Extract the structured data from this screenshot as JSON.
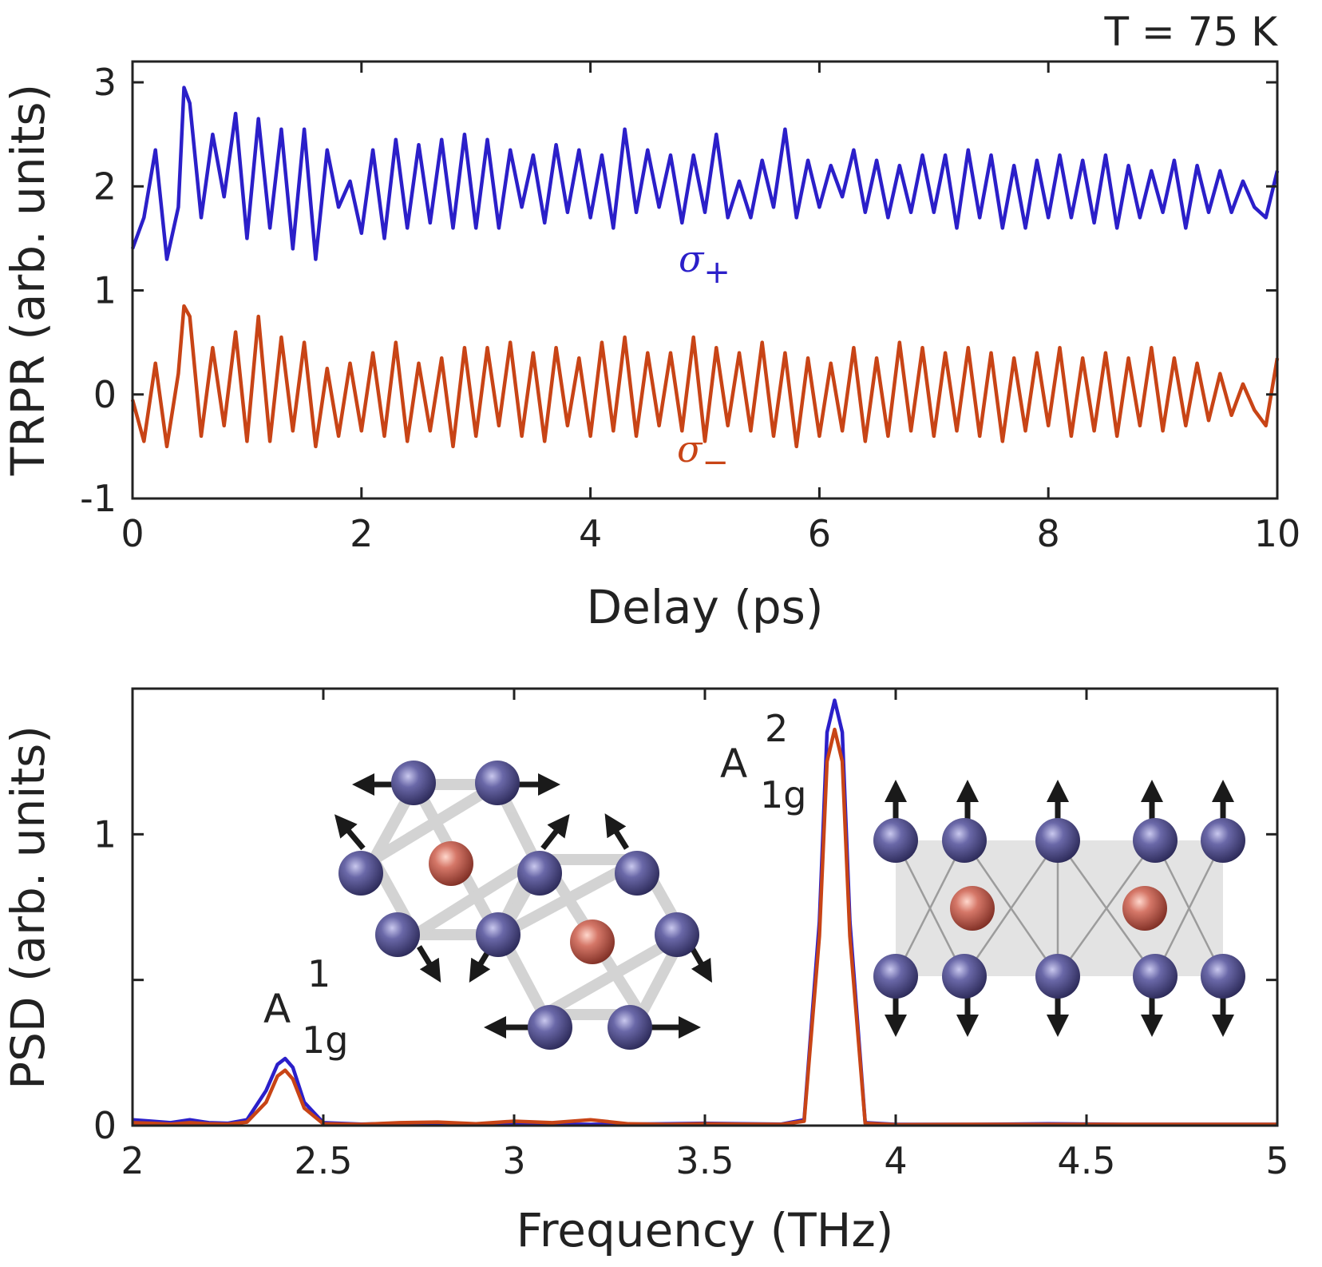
{
  "chart_data": [
    {
      "type": "line",
      "title": "",
      "annotation": "T = 75 K",
      "xlabel": "Delay (ps)",
      "ylabel": "TRPR (arb. units)",
      "xlim": [
        0,
        10
      ],
      "ylim": [
        -1,
        3.2
      ],
      "xticks": [
        "0",
        "2",
        "4",
        "6",
        "8",
        "10"
      ],
      "yticks": [
        "-1",
        "0",
        "1",
        "2",
        "3"
      ],
      "grid": false,
      "series": [
        {
          "name": "σ+",
          "label_base": "σ",
          "label_sub": "+",
          "color": "#2b1fc9",
          "offset": 2.0,
          "x": [
            0,
            0.1,
            0.2,
            0.3,
            0.4,
            0.45,
            0.5,
            0.6,
            0.7,
            0.8,
            0.9,
            1.0,
            1.1,
            1.2,
            1.3,
            1.4,
            1.5,
            1.6,
            1.7,
            1.8,
            1.9,
            2.0,
            2.1,
            2.2,
            2.3,
            2.4,
            2.5,
            2.6,
            2.7,
            2.8,
            2.9,
            3.0,
            3.1,
            3.2,
            3.3,
            3.4,
            3.5,
            3.6,
            3.7,
            3.8,
            3.9,
            4.0,
            4.1,
            4.2,
            4.3,
            4.4,
            4.5,
            4.6,
            4.7,
            4.8,
            4.9,
            5.0,
            5.1,
            5.2,
            5.3,
            5.4,
            5.5,
            5.6,
            5.7,
            5.8,
            5.9,
            6.0,
            6.1,
            6.2,
            6.3,
            6.4,
            6.5,
            6.6,
            6.7,
            6.8,
            6.9,
            7.0,
            7.1,
            7.2,
            7.3,
            7.4,
            7.5,
            7.6,
            7.7,
            7.8,
            7.9,
            8.0,
            8.1,
            8.2,
            8.3,
            8.4,
            8.5,
            8.6,
            8.7,
            8.8,
            8.9,
            9.0,
            9.1,
            9.2,
            9.3,
            9.4,
            9.5,
            9.6,
            9.7,
            9.8,
            9.9,
            10.0
          ],
          "y": [
            1.4,
            1.7,
            2.35,
            1.3,
            1.8,
            2.95,
            2.8,
            1.7,
            2.5,
            1.9,
            2.7,
            1.5,
            2.65,
            1.6,
            2.55,
            1.4,
            2.55,
            1.3,
            2.35,
            1.8,
            2.05,
            1.55,
            2.35,
            1.5,
            2.45,
            1.6,
            2.4,
            1.65,
            2.45,
            1.6,
            2.5,
            1.6,
            2.45,
            1.6,
            2.35,
            1.8,
            2.3,
            1.65,
            2.4,
            1.75,
            2.35,
            1.7,
            2.3,
            1.6,
            2.55,
            1.75,
            2.35,
            1.8,
            2.3,
            1.65,
            2.3,
            1.75,
            2.5,
            1.7,
            2.05,
            1.7,
            2.25,
            1.8,
            2.55,
            1.7,
            2.25,
            1.8,
            2.2,
            1.9,
            2.35,
            1.75,
            2.25,
            1.7,
            2.2,
            1.75,
            2.3,
            1.75,
            2.3,
            1.6,
            2.35,
            1.7,
            2.3,
            1.6,
            2.2,
            1.6,
            2.25,
            1.7,
            2.3,
            1.7,
            2.25,
            1.65,
            2.3,
            1.6,
            2.2,
            1.7,
            2.15,
            1.75,
            2.25,
            1.6,
            2.2,
            1.75,
            2.15,
            1.75,
            2.05,
            1.8,
            1.7,
            2.15
          ]
        },
        {
          "name": "σ−",
          "label_base": "σ",
          "label_sub": "−",
          "color": "#c84416",
          "offset": 0.0,
          "x": [
            0,
            0.1,
            0.2,
            0.3,
            0.4,
            0.45,
            0.5,
            0.6,
            0.7,
            0.8,
            0.9,
            1.0,
            1.1,
            1.2,
            1.3,
            1.4,
            1.5,
            1.6,
            1.7,
            1.8,
            1.9,
            2.0,
            2.1,
            2.2,
            2.3,
            2.4,
            2.5,
            2.6,
            2.7,
            2.8,
            2.9,
            3.0,
            3.1,
            3.2,
            3.3,
            3.4,
            3.5,
            3.6,
            3.7,
            3.8,
            3.9,
            4.0,
            4.1,
            4.2,
            4.3,
            4.4,
            4.5,
            4.6,
            4.7,
            4.8,
            4.9,
            5.0,
            5.1,
            5.2,
            5.3,
            5.4,
            5.5,
            5.6,
            5.7,
            5.8,
            5.9,
            6.0,
            6.1,
            6.2,
            6.3,
            6.4,
            6.5,
            6.6,
            6.7,
            6.8,
            6.9,
            7.0,
            7.1,
            7.2,
            7.3,
            7.4,
            7.5,
            7.6,
            7.7,
            7.8,
            7.9,
            8.0,
            8.1,
            8.2,
            8.3,
            8.4,
            8.5,
            8.6,
            8.7,
            8.8,
            8.9,
            9.0,
            9.1,
            9.2,
            9.3,
            9.4,
            9.5,
            9.6,
            9.7,
            9.8,
            9.9,
            10.0
          ],
          "y": [
            -0.05,
            -0.45,
            0.3,
            -0.5,
            0.2,
            0.85,
            0.75,
            -0.4,
            0.45,
            -0.3,
            0.6,
            -0.45,
            0.75,
            -0.45,
            0.55,
            -0.35,
            0.5,
            -0.5,
            0.25,
            -0.4,
            0.3,
            -0.35,
            0.4,
            -0.4,
            0.5,
            -0.45,
            0.3,
            -0.35,
            0.35,
            -0.5,
            0.45,
            -0.4,
            0.45,
            -0.3,
            0.5,
            -0.4,
            0.4,
            -0.45,
            0.45,
            -0.3,
            0.35,
            -0.4,
            0.5,
            -0.35,
            0.55,
            -0.4,
            0.4,
            -0.3,
            0.4,
            -0.35,
            0.55,
            -0.45,
            0.45,
            -0.3,
            0.4,
            -0.35,
            0.5,
            -0.4,
            0.4,
            -0.5,
            0.35,
            -0.4,
            0.3,
            -0.35,
            0.45,
            -0.45,
            0.35,
            -0.4,
            0.5,
            -0.35,
            0.45,
            -0.4,
            0.4,
            -0.35,
            0.45,
            -0.4,
            0.4,
            -0.45,
            0.35,
            -0.35,
            0.4,
            -0.3,
            0.45,
            -0.4,
            0.35,
            -0.35,
            0.4,
            -0.4,
            0.35,
            -0.3,
            0.45,
            -0.35,
            0.35,
            -0.3,
            0.3,
            -0.25,
            0.2,
            -0.2,
            0.1,
            -0.15,
            -0.3,
            0.35
          ]
        }
      ]
    },
    {
      "type": "line",
      "title": "",
      "xlabel": "Frequency (THz)",
      "ylabel": "PSD (arb. units)",
      "xlim": [
        2,
        5
      ],
      "ylim": [
        0,
        1.5
      ],
      "xticks": [
        "2",
        "2.5",
        "3",
        "3.5",
        "4",
        "4.5",
        "5"
      ],
      "yticks": [
        "0",
        "1"
      ],
      "grid": false,
      "peaks": [
        {
          "label_base": "A",
          "label_sup": "1",
          "label_sub": "1g",
          "x": 2.4
        },
        {
          "label_base": "A",
          "label_sup": "2",
          "label_sub": "1g",
          "x": 3.84
        }
      ],
      "series": [
        {
          "name": "σ+",
          "color": "#2b1fc9",
          "baseline": 0.004,
          "x": [
            2,
            2.05,
            2.1,
            2.15,
            2.2,
            2.25,
            2.3,
            2.35,
            2.38,
            2.4,
            2.42,
            2.45,
            2.5,
            2.6,
            2.7,
            2.8,
            2.9,
            3.0,
            3.1,
            3.2,
            3.3,
            3.4,
            3.5,
            3.6,
            3.7,
            3.76,
            3.8,
            3.82,
            3.84,
            3.86,
            3.88,
            3.92,
            4.0,
            4.2,
            4.4,
            4.6,
            4.8,
            5.0
          ],
          "y": [
            0.02,
            0.015,
            0.01,
            0.02,
            0.01,
            0.008,
            0.02,
            0.12,
            0.21,
            0.23,
            0.2,
            0.08,
            0.01,
            0.005,
            0.008,
            0.01,
            0.005,
            0.008,
            0.005,
            0.004,
            0.005,
            0.006,
            0.008,
            0.006,
            0.005,
            0.02,
            0.7,
            1.35,
            1.46,
            1.35,
            0.7,
            0.01,
            0.004,
            0.004,
            0.006,
            0.004,
            0.004,
            0.004
          ]
        },
        {
          "name": "σ−",
          "color": "#c84416",
          "baseline": 0.003,
          "x": [
            2,
            2.05,
            2.1,
            2.15,
            2.2,
            2.25,
            2.3,
            2.35,
            2.38,
            2.4,
            2.42,
            2.45,
            2.5,
            2.6,
            2.7,
            2.8,
            2.9,
            3.0,
            3.1,
            3.2,
            3.3,
            3.4,
            3.5,
            3.6,
            3.7,
            3.76,
            3.8,
            3.82,
            3.84,
            3.86,
            3.88,
            3.92,
            4.0,
            4.2,
            4.4,
            4.6,
            4.8,
            5.0
          ],
          "y": [
            0.01,
            0.008,
            0.005,
            0.01,
            0.006,
            0.005,
            0.012,
            0.08,
            0.17,
            0.19,
            0.16,
            0.06,
            0.006,
            0.004,
            0.01,
            0.012,
            0.006,
            0.015,
            0.01,
            0.02,
            0.006,
            0.004,
            0.006,
            0.005,
            0.004,
            0.015,
            0.65,
            1.25,
            1.36,
            1.25,
            0.65,
            0.008,
            0.003,
            0.004,
            0.004,
            0.004,
            0.004,
            0.004
          ]
        }
      ]
    }
  ],
  "insets": {
    "colors": {
      "atom_blue": "#4f4d86",
      "atom_red": "#c05f52",
      "bond_gray": "#c8c8c8",
      "arrow": "#1a1a1a"
    }
  }
}
